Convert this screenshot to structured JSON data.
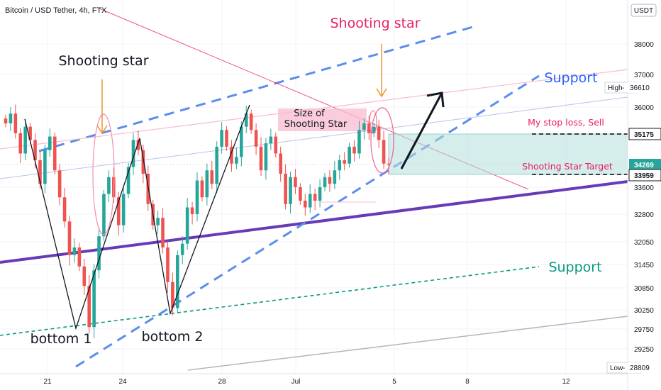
{
  "header": {
    "title": "Bitcoin / USD Tether, 4h, FTX",
    "currency_button": "USDT"
  },
  "chart_data": {
    "type": "candlestick",
    "title": "Bitcoin / USD Tether, 4h, FTX",
    "y_ticks": [
      38000,
      37000,
      36000,
      35175,
      34269,
      33959,
      33600,
      32800,
      32050,
      31450,
      30850,
      30250,
      29750,
      29250,
      28809
    ],
    "y_tick_labels": [
      "38000",
      "37000",
      "36000",
      "35175",
      "34269",
      "33959",
      "33600",
      "32800",
      "32050",
      "31450",
      "30850",
      "30250",
      "29750",
      "29250",
      "28809"
    ],
    "x_tick_labels": [
      "21",
      "24",
      "28",
      "Jul",
      "5",
      "8",
      "12"
    ],
    "labels": {
      "high": "High",
      "high_value": "36610",
      "low": "Low",
      "low_value": "28809",
      "stop_loss_level": "35175",
      "last_price": "34269",
      "target_level": "33959"
    },
    "series": [
      {
        "name": "",
        "ohlc_close": [
          35500,
          35800,
          35200,
          34600,
          35400,
          35000,
          34400,
          33700,
          34700,
          35100,
          34100,
          33300,
          32600,
          31700,
          31900,
          31400,
          30900,
          29800,
          31300,
          32200,
          33400,
          33900,
          33300,
          32500,
          33400,
          34200,
          35000,
          34700,
          34000,
          33100,
          32500,
          32700,
          31900,
          31000,
          30300,
          31700,
          32000,
          33000,
          32800,
          33800,
          33300,
          34100,
          33700,
          34800,
          35300,
          34800,
          34300,
          34500,
          35400,
          35800,
          35300,
          34800,
          34100,
          34900,
          35100,
          34600,
          34000,
          33100,
          33900,
          33600,
          33200,
          33000,
          33400,
          33200,
          33600,
          33900,
          33700,
          34100,
          34400,
          34300,
          34800,
          34600,
          35300,
          35500,
          35200,
          35400,
          35000,
          34300,
          34269
        ]
      }
    ],
    "annotations": {
      "shooting_star_left": "Shooting star",
      "shooting_star_top": "Shooting star",
      "size_box": "Size of\nShooting  Star",
      "support_upper": "Support",
      "support_lower": "Support",
      "stop_loss": "My stop loss, Sell",
      "target": "Shooting  Star Target",
      "bottom1": "bottom 1",
      "bottom2": "bottom 2"
    },
    "colors": {
      "up": "#26a69a",
      "down": "#ef5350",
      "purple_line": "#673ab7",
      "blue_channel": "#5b8def",
      "teal": "#089981",
      "pink": "#e91e63",
      "orange": "#f0932b",
      "support_text": "#2962ff",
      "support_teal_text": "#089981"
    }
  }
}
